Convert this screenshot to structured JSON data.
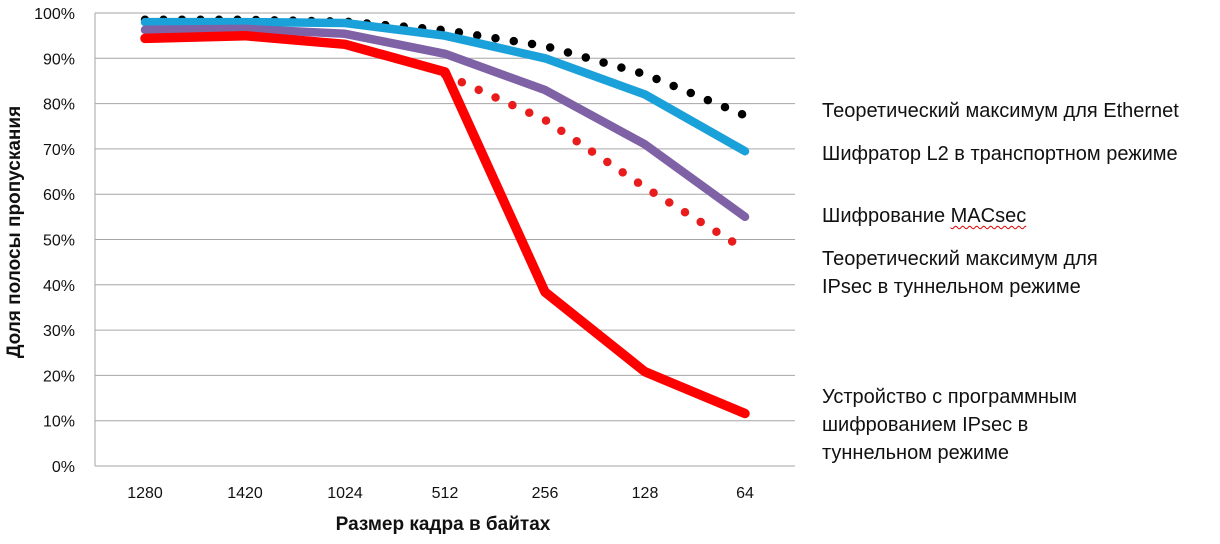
{
  "chart_data": {
    "type": "line",
    "categories": [
      "1280",
      "1420",
      "1024",
      "512",
      "256",
      "128",
      "64"
    ],
    "xlabel": "Размер кадра в байтах",
    "ylabel": "Доля полосы пропускания",
    "ylim": [
      0,
      100
    ],
    "yticks": [
      "0%",
      "10%",
      "20%",
      "30%",
      "40%",
      "50%",
      "60%",
      "70%",
      "80%",
      "90%",
      "100%"
    ],
    "grid": "horizontal",
    "legend_position": "right",
    "series": [
      {
        "name": "Теоретический максимум для Ethernet",
        "values": [
          98.5,
          98.5,
          98.1,
          96.2,
          92.7,
          86.5,
          77.4
        ],
        "color": "#000000",
        "style": "dotted"
      },
      {
        "name": "Шифратор L2 в транспортном режиме",
        "values": [
          98,
          98,
          97.8,
          95,
          90,
          82,
          69.5
        ],
        "color": "#1BA1D9",
        "style": "solid"
      },
      {
        "name": "Шифрование MACsec",
        "values": [
          96.3,
          96.5,
          95.4,
          91,
          83,
          71,
          55
        ],
        "color": "#7F62A6",
        "style": "solid"
      },
      {
        "name": "Теоретический максимум для IPsec в туннельном режиме",
        "values": [
          null,
          null,
          null,
          86.4,
          76.4,
          61.5,
          47.8
        ],
        "color": "#E81C1C",
        "style": "dotted"
      },
      {
        "name": "Устройство с программным шифрованием IPsec в туннельном режиме",
        "values": [
          94.4,
          95,
          93.1,
          87,
          38.4,
          20.8,
          11.6
        ],
        "color": "#FF0000",
        "style": "solid"
      }
    ]
  },
  "legend": {
    "ethernet_max": "Теоретический максимум для Ethernet",
    "l2_encryptor": "Шифратор L2 в транспортном режиме",
    "macsec_prefix": "Шифрование ",
    "macsec_word": "MACsec",
    "ipsec_max_line1": "Теоретический максимум для",
    "ipsec_max_line2": "IPsec в туннельном режиме",
    "software_line1": "Устройство с программным",
    "software_line2": "шифрованием IPsec в",
    "software_line3": "туннельном режиме"
  }
}
